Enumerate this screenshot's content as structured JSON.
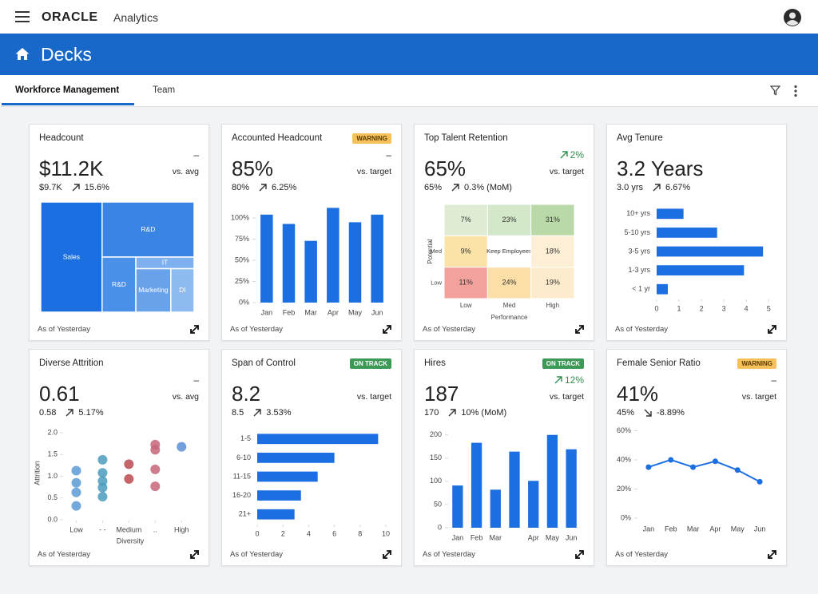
{
  "header": {
    "brand": "ORACLE",
    "product": "Analytics"
  },
  "banner": {
    "title": "Decks"
  },
  "tabs": [
    "Workforce Management",
    "Team"
  ],
  "cards": [
    {
      "title": "Headcount",
      "value": "$11.2K",
      "comparison": "–",
      "comparison_label": "vs. avg",
      "sub_value": "$9.7K",
      "change": "15.6%",
      "trend": "up",
      "footer": "As of Yesterday",
      "chart": {
        "type": "treemap",
        "categories": [
          "Sales",
          "R&D",
          "R&D",
          "IT",
          "Marketing",
          "DI"
        ],
        "values": [
          40,
          30,
          11,
          4,
          9,
          6
        ],
        "colors": [
          "#1b6fe0",
          "#3a84e4",
          "#4b90e8",
          "#7eb0ef",
          "#68a2eb",
          "#8dbaf1"
        ]
      }
    },
    {
      "title": "Accounted Headcount",
      "status": "WARNING",
      "status_color": "#f6c15a",
      "status_text_color": "#5a3d00",
      "value": "85%",
      "comparison": "–",
      "comparison_label": "vs. target",
      "sub_value": "80%",
      "change": "6.25%",
      "trend": "up",
      "footer": "As of Yesterday",
      "chart": {
        "type": "bar",
        "categories": [
          "Jan",
          "Feb",
          "Mar",
          "Apr",
          "May",
          "Jun"
        ],
        "values": [
          104,
          93,
          73,
          112,
          95,
          104
        ],
        "color": "#1b6fe0",
        "ylim": [
          0,
          118
        ],
        "yticks": [
          {
            "value": 0,
            "label": "0%"
          },
          {
            "value": 25,
            "label": "25%"
          },
          {
            "value": 50,
            "label": "50%"
          },
          {
            "value": 75,
            "label": "75%"
          },
          {
            "value": 100,
            "label": "100%"
          }
        ]
      }
    },
    {
      "title": "Top Talent Retention",
      "value": "65%",
      "comparison": "2%",
      "comparison_trend": "up",
      "comparison_color": "#2f8f4e",
      "comparison_label": "vs. target",
      "sub_value": "65%",
      "change": "0.3% (MoM)",
      "trend": "up",
      "footer": "As of Yesterday",
      "chart": {
        "type": "heatmap",
        "x_categories": [
          "Low",
          "Med",
          "High"
        ],
        "y_categories": [
          null,
          "Med",
          "Low"
        ],
        "values": [
          [
            7,
            23,
            31
          ],
          [
            9,
            null,
            18
          ],
          [
            11,
            24,
            19
          ]
        ],
        "value_labels": [
          [
            "7%",
            "23%",
            "31%"
          ],
          [
            "9%",
            null,
            "18%"
          ],
          [
            "11%",
            "24%",
            "19%"
          ]
        ],
        "center_label": "Keep Employees",
        "colors": [
          [
            "#dfecd3",
            "#d3e8c8",
            "#b9d9a9"
          ],
          [
            "#fbe2a6",
            "#ffffff",
            "#fdefd6"
          ],
          [
            "#f3a19c",
            "#fbdfa7",
            "#fdebcd"
          ]
        ],
        "xlabel": "Performance",
        "ylabel": "Potential"
      }
    },
    {
      "title": "Avg Tenure",
      "value": "3.2 Years",
      "sub_value": "3.0 yrs",
      "change": "6.67%",
      "trend": "up",
      "footer": "As of Yesterday",
      "chart": {
        "type": "hbar",
        "categories": [
          "10+ yrs",
          "5-10 yrs",
          "3-5 yrs",
          "1-3 yrs",
          "< 1 yr"
        ],
        "values": [
          1.2,
          2.7,
          4.75,
          3.9,
          0.5
        ],
        "color": "#1b6fe0",
        "xlim": [
          0,
          5.1
        ],
        "xticks": [
          0,
          1,
          2,
          3,
          4,
          5
        ]
      }
    },
    {
      "title": "Diverse Attrition",
      "value": "0.61",
      "comparison": "–",
      "comparison_label": "vs. avg",
      "sub_value": "0.58",
      "change": "5.17%",
      "trend": "up",
      "footer": "As of Yesterday",
      "chart": {
        "type": "scatter",
        "xlim": [
          0.5,
          5.6
        ],
        "ylim": [
          0,
          2.15
        ],
        "xticks": [
          {
            "value": 1,
            "label": "Low"
          },
          {
            "value": 2,
            "label": "- -"
          },
          {
            "value": 3,
            "label": "Medium"
          },
          {
            "value": 4,
            "label": ".."
          },
          {
            "value": 5,
            "label": "High"
          }
        ],
        "yticks": [
          {
            "value": 0,
            "label": "0.0"
          },
          0.5,
          {
            "value": 1,
            "label": "1.0"
          },
          1.5,
          {
            "value": 2,
            "label": "2.0"
          }
        ],
        "series": [
          {
            "color": "#5b9bd5",
            "x": [
              1,
              1,
              1,
              1
            ],
            "values": [
              1.13,
              0.85,
              0.63,
              0.32
            ]
          },
          {
            "color": "#4a9bbd",
            "x": [
              2,
              2,
              2,
              2,
              2
            ],
            "values": [
              1.38,
              1.08,
              0.89,
              0.74,
              0.53
            ]
          },
          {
            "color": "#b94a4f",
            "x": [
              3,
              3
            ],
            "values": [
              1.28,
              0.94
            ]
          },
          {
            "color": "#c76579",
            "x": [
              4,
              4,
              4,
              4
            ],
            "values": [
              1.73,
              1.61,
              1.16,
              0.77
            ]
          },
          {
            "color": "#5b8fd5",
            "x": [
              5
            ],
            "values": [
              1.68
            ]
          }
        ],
        "xlabel": "Diversity",
        "ylabel": "Attrition"
      }
    },
    {
      "title": "Span of Control",
      "status": "ON TRACK",
      "status_color": "#3d9a56",
      "status_text_color": "#ffffff",
      "value": "8.2",
      "comparison_label": "vs. target",
      "sub_value": "8.5",
      "change": "3.53%",
      "trend": "up",
      "footer": "As of Yesterday",
      "chart": {
        "type": "hbar",
        "categories": [
          "1-5",
          "6-10",
          "11-15",
          "16-20",
          "21+"
        ],
        "values": [
          9.4,
          6.0,
          4.7,
          3.4,
          2.9
        ],
        "color": "#1b6fe0",
        "xlim": [
          0,
          10
        ],
        "xticks": [
          0,
          2,
          4,
          6,
          8,
          10
        ]
      }
    },
    {
      "title": "Hires",
      "status": "ON TRACK",
      "status_color": "#3d9a56",
      "status_text_color": "#ffffff",
      "value": "187",
      "comparison": "12%",
      "comparison_trend": "up",
      "comparison_color": "#2f8f4e",
      "comparison_label": "vs. target",
      "sub_value": "170",
      "change": "10% (MoM)",
      "trend": "up",
      "footer": "As of Yesterday",
      "chart": {
        "type": "bar",
        "categories": [
          "Jan",
          "Feb",
          "Mar",
          null,
          "Apr",
          "May",
          "Jun"
        ],
        "values": [
          91,
          183,
          82,
          164,
          101,
          200,
          169
        ],
        "color": "#1b6fe0",
        "ylim": [
          0,
          215
        ],
        "yticks": [
          0,
          50,
          100,
          150,
          200
        ]
      }
    },
    {
      "title": "Female Senior Ratio",
      "status": "WARNING",
      "status_color": "#f6c15a",
      "status_text_color": "#5a3d00",
      "value": "41%",
      "comparison": "–",
      "comparison_label": "vs. target",
      "sub_value": "45%",
      "change": "-8.89%",
      "trend": "down",
      "footer": "As of Yesterday",
      "chart": {
        "type": "line",
        "categories": [
          "Jan",
          "Feb",
          "Mar",
          "Apr",
          "May",
          "Jun"
        ],
        "values": [
          35,
          40,
          35,
          39,
          33,
          25
        ],
        "color": "#1b6fe0",
        "ylim": [
          0,
          63
        ],
        "yticks": [
          {
            "value": 0,
            "label": "0%"
          },
          {
            "value": 20,
            "label": "20%"
          },
          {
            "value": 40,
            "label": "40%"
          },
          {
            "value": 60,
            "label": "60%"
          }
        ]
      }
    }
  ]
}
